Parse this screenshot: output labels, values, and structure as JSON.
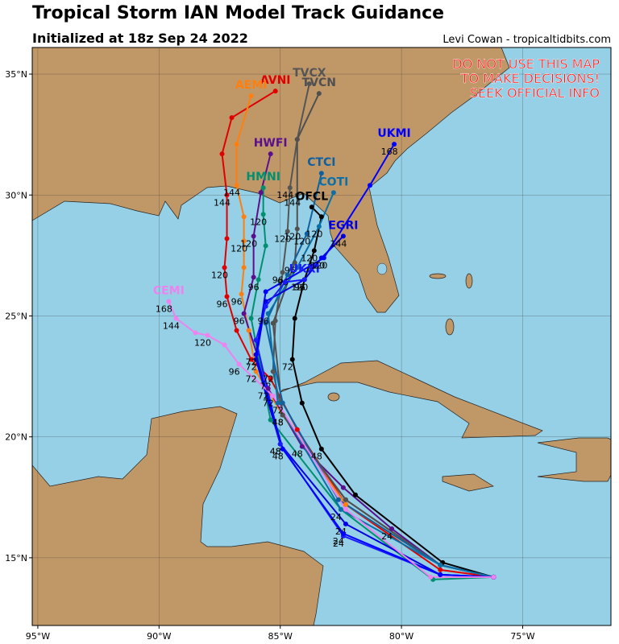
{
  "header": {
    "title": "Tropical Storm IAN Model Track Guidance",
    "subtitle": "Initialized at 18z Sep 24 2022",
    "credit": "Levi Cowan - tropicaltidbits.com",
    "warning": [
      "DO NOT USE THIS MAP",
      "TO MAKE DECISIONS!",
      "SEEK OFFICIAL INFO"
    ]
  },
  "map": {
    "xlim": [
      -95.23,
      -71.36
    ],
    "ylim": [
      12.2,
      36.1
    ],
    "xticks": [
      {
        "value": -95,
        "label": "95°W"
      },
      {
        "value": -90,
        "label": "90°W"
      },
      {
        "value": -85,
        "label": "85°W"
      },
      {
        "value": -80,
        "label": "80°W"
      },
      {
        "value": -75,
        "label": "75°W"
      }
    ],
    "yticks": [
      {
        "value": 15,
        "label": "15°N"
      },
      {
        "value": 20,
        "label": "20°N"
      },
      {
        "value": 25,
        "label": "25°N"
      },
      {
        "value": 30,
        "label": "30°N"
      },
      {
        "value": 35,
        "label": "35°N"
      }
    ],
    "tracks": [
      {
        "name": "AVNI",
        "color": "#e00000",
        "lon": [
          -76.2,
          -78.4,
          -82.3,
          -84.3,
          -85.4,
          -86.2,
          -86.8,
          -87.2,
          -87.3,
          -87.2,
          -87.2,
          -87.4,
          -87.0,
          -85.2
        ],
        "lat": [
          14.2,
          14.5,
          17.2,
          20.3,
          22.4,
          23.2,
          24.4,
          25.8,
          27.0,
          28.2,
          30.0,
          31.7,
          33.2,
          34.3
        ],
        "hours": [
          null,
          null,
          null,
          null,
          72,
          null,
          null,
          96,
          120,
          null,
          144,
          null,
          null,
          null
        ]
      },
      {
        "name": "AEMI",
        "color": "#ff7f0e",
        "lon": [
          -76.2,
          -78.4,
          -82.3,
          -84.9,
          -86.0,
          -86.3,
          -86.6,
          -86.5,
          -86.5,
          -86.5,
          -86.8,
          -86.8,
          -86.2
        ],
        "lat": [
          14.2,
          14.7,
          17.2,
          20.9,
          22.7,
          24.4,
          25.9,
          27.0,
          28.1,
          29.1,
          30.4,
          32.1,
          34.1
        ],
        "hours": [
          null,
          null,
          null,
          null,
          72,
          null,
          96,
          null,
          120,
          null,
          144,
          null,
          null
        ]
      },
      {
        "name": "HWFI",
        "color": "#5b0f8c",
        "lon": [
          -76.2,
          -78.4,
          -80.4,
          -82.4,
          -84.1,
          -85.5,
          -86.5,
          -86.1,
          -86.1,
          -85.8,
          -85.4
        ],
        "lat": [
          14.2,
          14.7,
          16.2,
          17.9,
          19.6,
          22.0,
          25.1,
          26.6,
          28.3,
          30.1,
          31.7
        ],
        "hours": [
          null,
          null,
          24,
          null,
          48,
          72,
          96,
          null,
          120,
          null,
          null
        ]
      },
      {
        "name": "HMNI",
        "color": "#009070",
        "lon": [
          -76.2,
          -78.7,
          -82.5,
          -85.4,
          -86.2,
          -85.9,
          -85.6,
          -85.7,
          -85.7
        ],
        "lat": [
          14.2,
          14.1,
          17.0,
          20.7,
          24.9,
          26.5,
          27.9,
          29.2,
          30.3
        ],
        "hours": [
          null,
          null,
          24,
          null,
          null,
          96,
          null,
          120,
          null
        ]
      },
      {
        "name": "TVCX",
        "color": "#555555",
        "lon": [
          -76.2,
          -78.4,
          -82.3,
          -84.9,
          -85.3,
          -85.2,
          -84.9,
          -84.7,
          -84.6,
          -84.3,
          -83.8
        ],
        "lat": [
          14.2,
          14.7,
          17.4,
          20.9,
          22.7,
          24.8,
          26.8,
          28.5,
          30.3,
          32.3,
          34.6
        ],
        "hours": [
          null,
          null,
          null,
          48,
          72,
          null,
          96,
          120,
          144,
          null,
          null
        ]
      },
      {
        "name": "TVCN",
        "color": "#505050",
        "lon": [
          -76.2,
          -78.4,
          -82.3,
          -84.9,
          -85.3,
          -84.4,
          -84.3,
          -84.3,
          -84.3,
          -83.4
        ],
        "lat": [
          14.2,
          14.7,
          17.4,
          20.9,
          24.7,
          27.2,
          28.6,
          30.0,
          32.3,
          34.2
        ],
        "hours": [
          null,
          null,
          null,
          48,
          null,
          96,
          120,
          144,
          null,
          null
        ]
      },
      {
        "name": "OFCL",
        "color": "#000000",
        "lon": [
          -76.2,
          -78.3,
          -81.9,
          -83.3,
          -84.1,
          -84.5,
          -84.4,
          -84.0,
          -83.6,
          -83.3,
          -83.7
        ],
        "lat": [
          14.2,
          14.8,
          17.6,
          19.5,
          21.4,
          23.2,
          24.9,
          26.5,
          27.7,
          29.1,
          29.5
        ],
        "hours": [
          null,
          null,
          null,
          48,
          null,
          72,
          null,
          96,
          120,
          null,
          null
        ]
      },
      {
        "name": "CTCI",
        "color": "#1060a0",
        "lon": [
          -76.2,
          -78.4,
          -82.6,
          -84.9,
          -85.6,
          -84.7,
          -83.9,
          -83.3
        ],
        "lat": [
          14.2,
          14.7,
          17.4,
          21.4,
          24.7,
          26.7,
          28.4,
          30.9
        ],
        "hours": [
          null,
          null,
          null,
          72,
          null,
          96,
          120,
          null
        ]
      },
      {
        "name": "COTI",
        "color": "#0b70a8",
        "lon": [
          -76.2,
          -78.4,
          -82.5,
          -85.1,
          -85.5,
          -84.3,
          -83.4,
          -82.8
        ],
        "lat": [
          14.2,
          14.7,
          17.0,
          21.4,
          25.1,
          27.0,
          28.7,
          30.1
        ],
        "hours": [
          null,
          null,
          null,
          null,
          96,
          null,
          120,
          null
        ]
      },
      {
        "name": "EGRI",
        "color": "#0000e0",
        "lon": [
          -76.2,
          -78.4,
          -82.3,
          -85.0,
          -86.0,
          -85.6,
          -84.0,
          -83.3,
          -82.4
        ],
        "lat": [
          14.2,
          14.3,
          16.4,
          19.7,
          23.2,
          25.6,
          26.5,
          27.4,
          28.3
        ],
        "hours": [
          null,
          null,
          24,
          48,
          72,
          null,
          96,
          120,
          144
        ]
      },
      {
        "name": "UKXI",
        "color": "#1a1aff",
        "lon": [
          -76.2,
          -78.4,
          -82.4,
          -85.0,
          -86.0,
          -85.6,
          -84.8,
          -84.0
        ],
        "lat": [
          14.2,
          14.3,
          15.9,
          19.7,
          24.0,
          25.4,
          26.4,
          26.5
        ],
        "hours": [
          null,
          null,
          24,
          48,
          null,
          null,
          null,
          120
        ]
      },
      {
        "name": "UKMI",
        "color": "#0000ff",
        "lon": [
          -76.2,
          -78.4,
          -82.4,
          -84.9,
          -86.0,
          -85.6,
          -83.2,
          -81.3,
          -80.3
        ],
        "lat": [
          14.2,
          14.3,
          16.0,
          19.5,
          23.4,
          26.0,
          27.4,
          30.4,
          32.1
        ],
        "hours": [
          null,
          null,
          24,
          48,
          72,
          null,
          120,
          null,
          168
        ]
      },
      {
        "name": "CEMI",
        "color": "#ee82ee",
        "lon": [
          -76.2,
          -78.8,
          -82.3,
          -85.3,
          -86.7,
          -87.3,
          -88.0,
          -88.5,
          -89.3,
          -89.6
        ],
        "lat": [
          14.2,
          14.2,
          17.0,
          21.7,
          23.0,
          23.8,
          24.2,
          24.3,
          24.9,
          25.6
        ],
        "hours": [
          null,
          null,
          null,
          72,
          96,
          null,
          120,
          null,
          144,
          168
        ]
      }
    ]
  }
}
